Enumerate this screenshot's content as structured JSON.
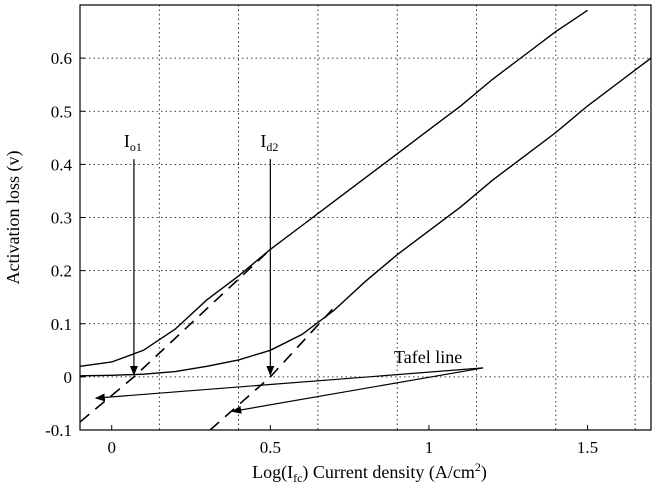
{
  "chart_data": {
    "type": "line",
    "title": "",
    "xlabel": {
      "prefix": "Log(I",
      "sub": "fc",
      "suffix": ") Current density (A/cm",
      "sup": "2",
      "end": ")"
    },
    "ylabel": "Activation loss (v)",
    "xlim": [
      -0.1,
      1.7
    ],
    "ylim": [
      -0.1,
      0.7
    ],
    "grid": true,
    "x_ticks": [
      0,
      0.5,
      1,
      1.5
    ],
    "x_tick_labels": [
      "0",
      "0.5",
      "1",
      "1.5"
    ],
    "y_ticks": [
      -0.1,
      0,
      0.1,
      0.2,
      0.3,
      0.4,
      0.5,
      0.6
    ],
    "y_tick_labels": [
      "-0.1",
      "0",
      "0.1",
      "0.2",
      "0.3",
      "0.4",
      "0.5",
      "0.6"
    ],
    "series": [
      {
        "style": "solid",
        "points": [
          [
            -0.1,
            0.02
          ],
          [
            0,
            0.028
          ],
          [
            0.1,
            0.05
          ],
          [
            0.2,
            0.09
          ],
          [
            0.3,
            0.145
          ],
          [
            0.4,
            0.19
          ],
          [
            0.5,
            0.24
          ],
          [
            0.6,
            0.285
          ],
          [
            0.7,
            0.33
          ],
          [
            0.8,
            0.375
          ],
          [
            0.9,
            0.42
          ],
          [
            1,
            0.465
          ],
          [
            1.1,
            0.51
          ],
          [
            1.2,
            0.56
          ],
          [
            1.3,
            0.605
          ],
          [
            1.4,
            0.65
          ],
          [
            1.5,
            0.69
          ]
        ]
      },
      {
        "style": "solid",
        "points": [
          [
            -0.1,
            0.002
          ],
          [
            0,
            0.003
          ],
          [
            0.1,
            0.005
          ],
          [
            0.2,
            0.01
          ],
          [
            0.3,
            0.02
          ],
          [
            0.4,
            0.032
          ],
          [
            0.5,
            0.05
          ],
          [
            0.6,
            0.08
          ],
          [
            0.7,
            0.125
          ],
          [
            0.8,
            0.18
          ],
          [
            0.9,
            0.23
          ],
          [
            1,
            0.275
          ],
          [
            1.1,
            0.32
          ],
          [
            1.2,
            0.37
          ],
          [
            1.3,
            0.415
          ],
          [
            1.4,
            0.46
          ],
          [
            1.5,
            0.51
          ],
          [
            1.6,
            0.555
          ],
          [
            1.7,
            0.6
          ]
        ]
      },
      {
        "style": "dashed",
        "points": [
          [
            -0.1,
            -0.085
          ],
          [
            0.07,
            0
          ],
          [
            0.5,
            0.24
          ]
        ]
      },
      {
        "style": "dashed",
        "points": [
          [
            0.31,
            -0.1
          ],
          [
            0.5,
            0
          ],
          [
            0.7,
            0.13
          ]
        ]
      }
    ],
    "annotations": [
      {
        "id": "i01",
        "main": "I",
        "sub": "o1",
        "x": 0.07,
        "y_top": 0.41,
        "y_bottom": 0.0
      },
      {
        "id": "id2",
        "main": "I",
        "sub": "d2",
        "x": 0.5,
        "y_top": 0.41,
        "y_bottom": 0.0
      },
      {
        "id": "tafel",
        "text": "Tafel line",
        "x": 1.18,
        "y": 0.015,
        "arrow_targets": [
          [
            -0.05,
            -0.04
          ],
          [
            0.38,
            -0.065
          ]
        ]
      }
    ]
  }
}
